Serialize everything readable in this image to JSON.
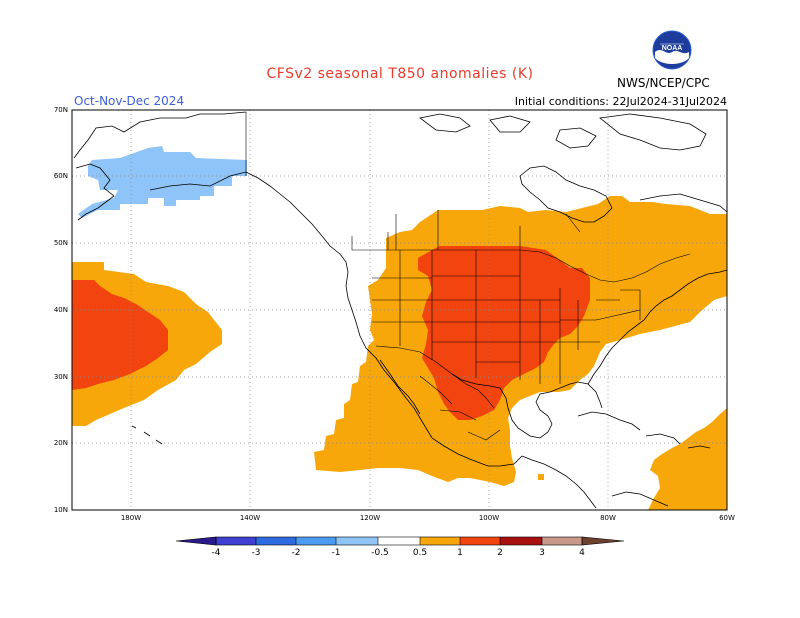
{
  "title": "CFSv2 seasonal T850 anomalies (K)",
  "period": "Oct-Nov-Dec 2024",
  "initial_conditions": "Initial conditions: 22Jul2024-31Jul2024",
  "agency": "NWS/NCEP/CPC",
  "logo_text": "NOAA",
  "lat_labels": [
    "70N",
    "60N",
    "50N",
    "40N",
    "30N",
    "20N",
    "10N"
  ],
  "lon_labels": [
    "180W",
    "140W",
    "120W",
    "100W",
    "80W",
    "60W"
  ],
  "colorbar": {
    "labels": [
      "-4",
      "-3",
      "-2",
      "-1",
      "-0.5",
      "0.5",
      "1",
      "2",
      "3",
      "4"
    ],
    "colors": {
      "lt_-4": "#2a1a8c",
      "-4_-3": "#3f3fd1",
      "-3_-2": "#2f6be0",
      "-2_-1": "#4b9cf0",
      "-1_-0.5": "#8ec4f7",
      "-0.5_0.5": "#ffffff",
      "0.5_1": "#f7a70a",
      "1_2": "#f2440f",
      "2_3": "#a80f0f",
      "3_4": "#c9998a",
      "gt_4": "#6e4030"
    }
  },
  "anomaly_regions": [
    {
      "name": "Alaska cold anomaly",
      "band": "-1_-0.5"
    },
    {
      "name": "Central Pacific warm anomaly",
      "band": "0.5_1"
    },
    {
      "name": "Central Pacific core",
      "band": "1_2"
    },
    {
      "name": "North America warm anomaly",
      "band": "0.5_1"
    },
    {
      "name": "Central US core",
      "band": "1_2"
    },
    {
      "name": "Caribbean warm anomaly",
      "band": "0.5_1"
    }
  ]
}
